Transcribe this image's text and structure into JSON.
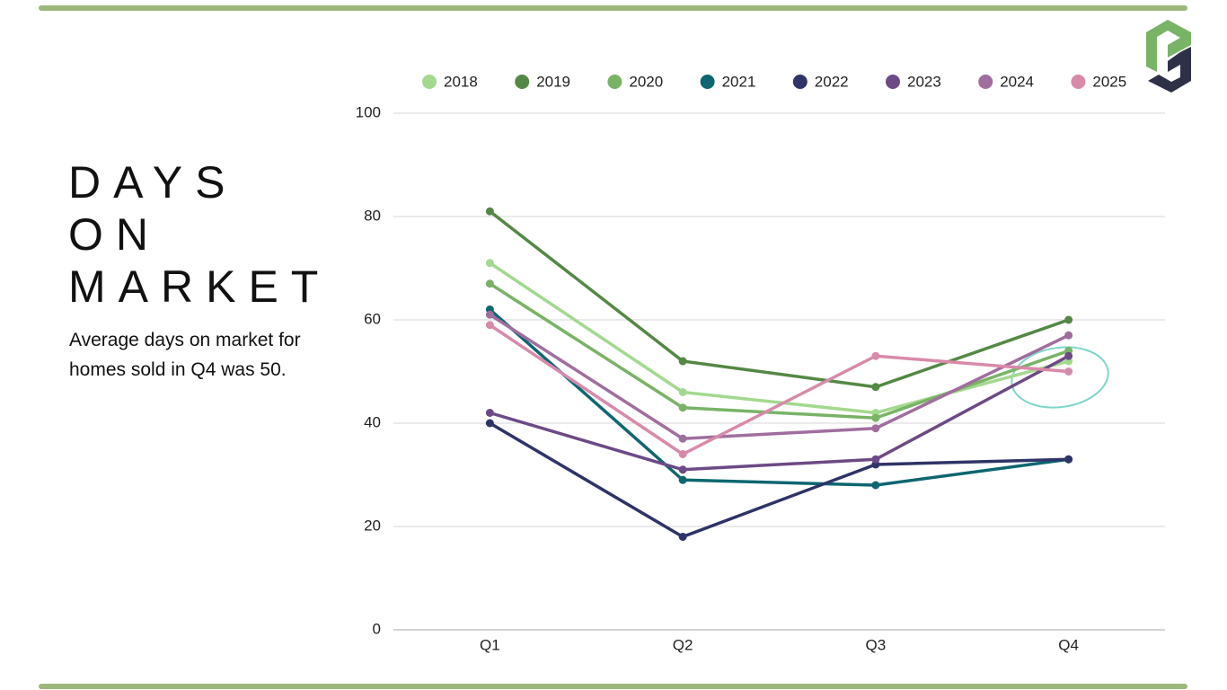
{
  "chart_data": {
    "type": "line",
    "title": "DAYS ON MARKET",
    "subtitle": "Average days on market for homes sold in Q4 was 50.",
    "categories": [
      "Q1",
      "Q2",
      "Q3",
      "Q4"
    ],
    "series": [
      {
        "name": "2018",
        "color": "#a3d98f",
        "values": [
          71,
          46,
          42,
          52
        ]
      },
      {
        "name": "2019",
        "color": "#548845",
        "values": [
          81,
          52,
          47,
          60
        ]
      },
      {
        "name": "2020",
        "color": "#79b366",
        "values": [
          67,
          43,
          41,
          54
        ]
      },
      {
        "name": "2021",
        "color": "#0e6670",
        "values": [
          62,
          29,
          28,
          33
        ]
      },
      {
        "name": "2022",
        "color": "#2e3467",
        "values": [
          40,
          18,
          32,
          33
        ]
      },
      {
        "name": "2023",
        "color": "#6c4a85",
        "values": [
          42,
          31,
          33,
          53
        ]
      },
      {
        "name": "2024",
        "color": "#a06e9e",
        "values": [
          61,
          37,
          39,
          57
        ]
      },
      {
        "name": "2025",
        "color": "#d88aaa",
        "values": [
          59,
          34,
          53,
          50
        ]
      }
    ],
    "ylim": [
      0,
      100
    ],
    "yticks": [
      0,
      20,
      40,
      60,
      80,
      100
    ],
    "grid": true,
    "legend": "top"
  }
}
